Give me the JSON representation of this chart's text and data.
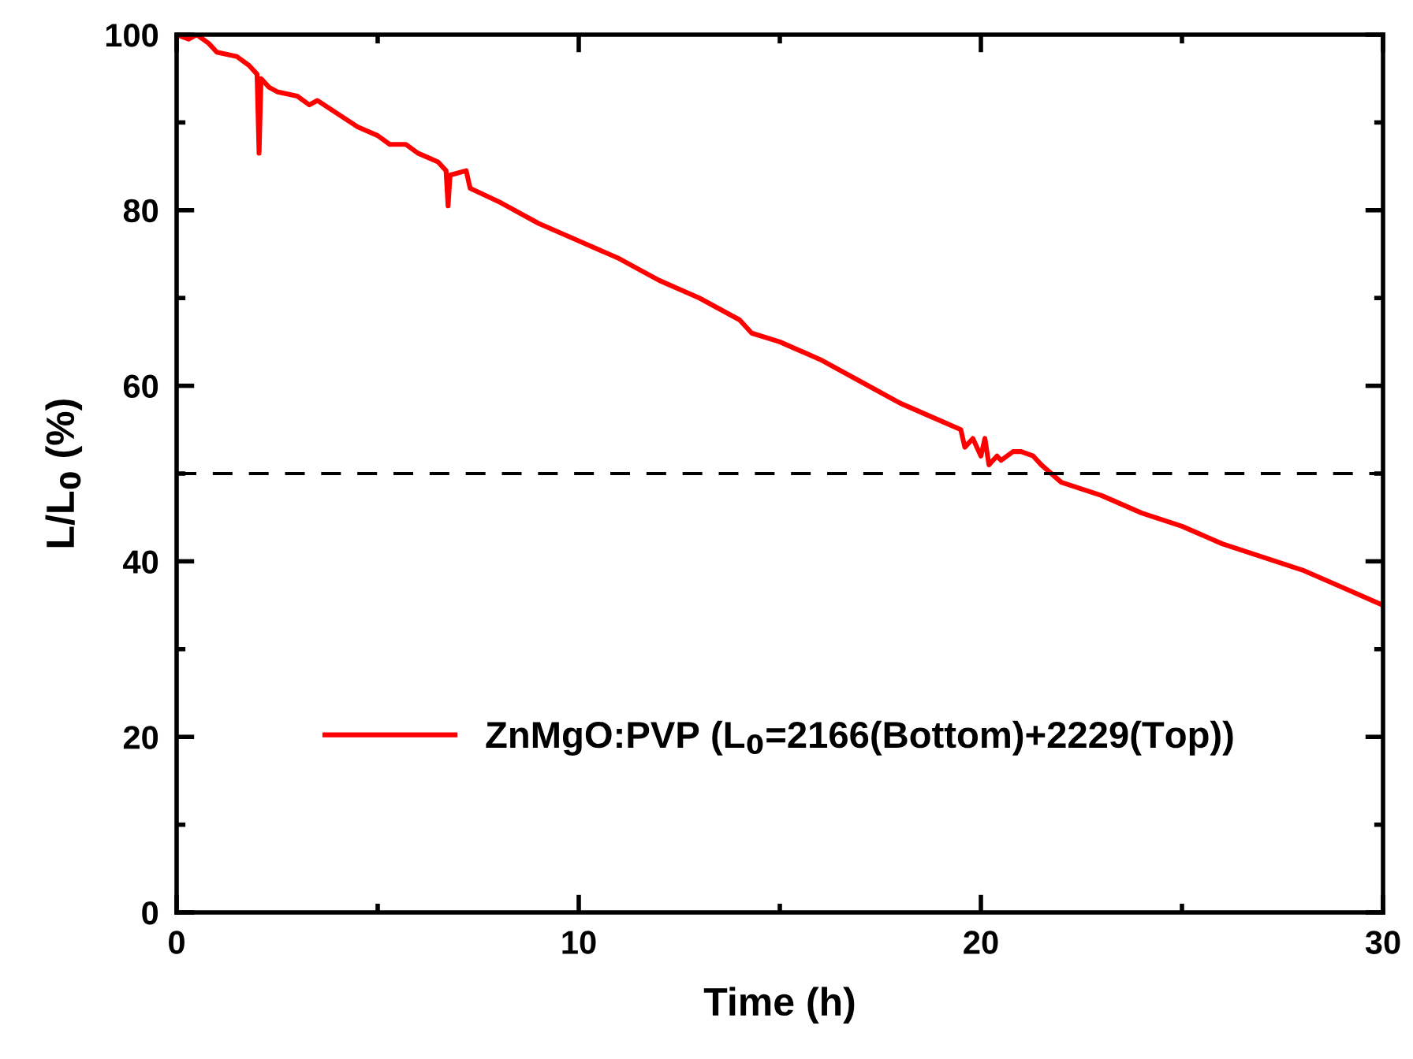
{
  "chart_data": {
    "type": "line",
    "xlabel": "Time (h)",
    "ylabel": "L/L$_{0}$ (%)",
    "xlim": [
      0,
      30
    ],
    "xticks": [
      0,
      10,
      20,
      30
    ],
    "ylim": [
      0,
      100
    ],
    "yticks": [
      0,
      20,
      40,
      60,
      80,
      100
    ],
    "grid": false,
    "legend": "bottom",
    "marker": "none",
    "line_style": "solid",
    "ref_lines": [
      {
        "axis": "y",
        "value": 50,
        "color": "#000000",
        "line_style": "dashed"
      }
    ],
    "series": [
      {
        "name": "ZnMgO:PVP (L$_{0}$=2166(Bottom)+2229(Top))",
        "color": "#ff0000",
        "x": [
          0,
          0.3,
          0.5,
          0.8,
          1.0,
          1.5,
          1.8,
          2.0,
          2.05,
          2.1,
          2.3,
          2.5,
          3,
          3.3,
          3.5,
          4,
          4.5,
          5,
          5.3,
          5.7,
          6,
          6.5,
          6.7,
          6.75,
          6.8,
          7.2,
          7.3,
          8,
          9,
          10,
          11,
          12,
          13,
          14,
          14.3,
          15,
          16,
          17,
          18,
          19,
          19.5,
          19.6,
          19.8,
          20,
          20.1,
          20.2,
          20.4,
          20.5,
          20.8,
          21,
          21.3,
          21.5,
          22,
          23,
          24,
          25,
          26,
          27,
          28,
          29,
          30
        ],
        "values": [
          100,
          99.5,
          100,
          99,
          98,
          97.5,
          96.5,
          95.5,
          86.5,
          95,
          94,
          93.5,
          93,
          92,
          92.5,
          91,
          89.5,
          88.5,
          87.5,
          87.5,
          86.5,
          85.5,
          84.5,
          80.5,
          84,
          84.5,
          82.5,
          81,
          78.5,
          76.5,
          74.5,
          72,
          70,
          67.5,
          66,
          65,
          63,
          60.5,
          58,
          56,
          55,
          53,
          54,
          52,
          54,
          51,
          52,
          51.5,
          52.5,
          52.5,
          52,
          51,
          49,
          47.5,
          45.5,
          44,
          42,
          40.5,
          39,
          37,
          35
        ]
      }
    ]
  }
}
